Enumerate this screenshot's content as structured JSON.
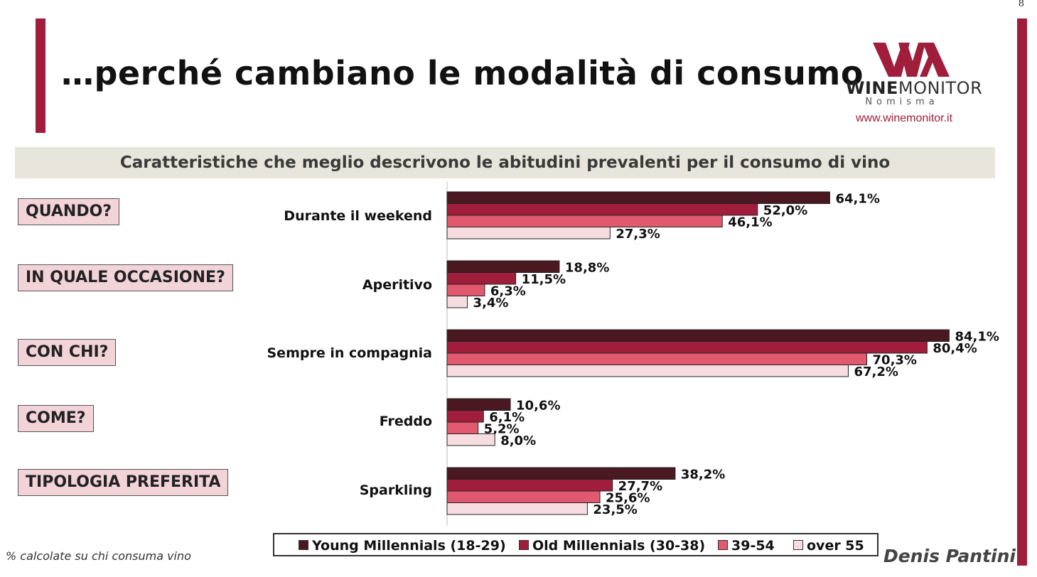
{
  "page_number": "8",
  "title": "…perché cambiano le modalità di consumo",
  "logo": {
    "name_bold": "WINE",
    "name_rest": "MONITOR",
    "sub": "Nomisma",
    "url": "www.winemonitor.it",
    "brand_color": "#a01d3c"
  },
  "questions": [
    "QUANDO?",
    "IN QUALE OCCASIONE?",
    "CON CHI?",
    "COME?",
    "TIPOLOGIA PREFERITA"
  ],
  "footnote": "% calcolate su chi consuma vino",
  "author": "Denis Pantini",
  "chart_data": {
    "type": "bar",
    "orientation": "horizontal",
    "title": "Caratteristiche che meglio descrivono le abitudini prevalenti per il consumo di vino",
    "categories": [
      "Durante il weekend",
      "Aperitivo",
      "Sempre in compagnia",
      "Freddo",
      "Sparkling"
    ],
    "series": [
      {
        "name": "Young Millennials (18-29)",
        "color": "#4a1820",
        "values": [
          64.1,
          18.8,
          84.1,
          10.6,
          38.2
        ],
        "labels": [
          "64,1%",
          "18,8%",
          "84,1%",
          "10,6%",
          "38,2%"
        ]
      },
      {
        "name": "Old Millennials (30-38)",
        "color": "#a01d3c",
        "values": [
          52.0,
          11.5,
          80.4,
          6.1,
          27.7
        ],
        "labels": [
          "52,0%",
          "11,5%",
          "80,4%",
          "6,1%",
          "27,7%"
        ]
      },
      {
        "name": "39-54",
        "color": "#e0596f",
        "values": [
          46.1,
          6.3,
          70.3,
          5.2,
          25.6
        ],
        "labels": [
          "46,1%",
          "6,3%",
          "70,3%",
          "5,2%",
          "25,6%"
        ]
      },
      {
        "name": "over 55",
        "color": "#f7dde0",
        "values": [
          27.3,
          3.4,
          67.2,
          8.0,
          23.5
        ],
        "labels": [
          "27,3%",
          "3,4%",
          "67,2%",
          "8,0%",
          "23,5%"
        ]
      }
    ],
    "xlim": [
      0,
      100
    ],
    "grid": false,
    "legend_position": "bottom"
  }
}
